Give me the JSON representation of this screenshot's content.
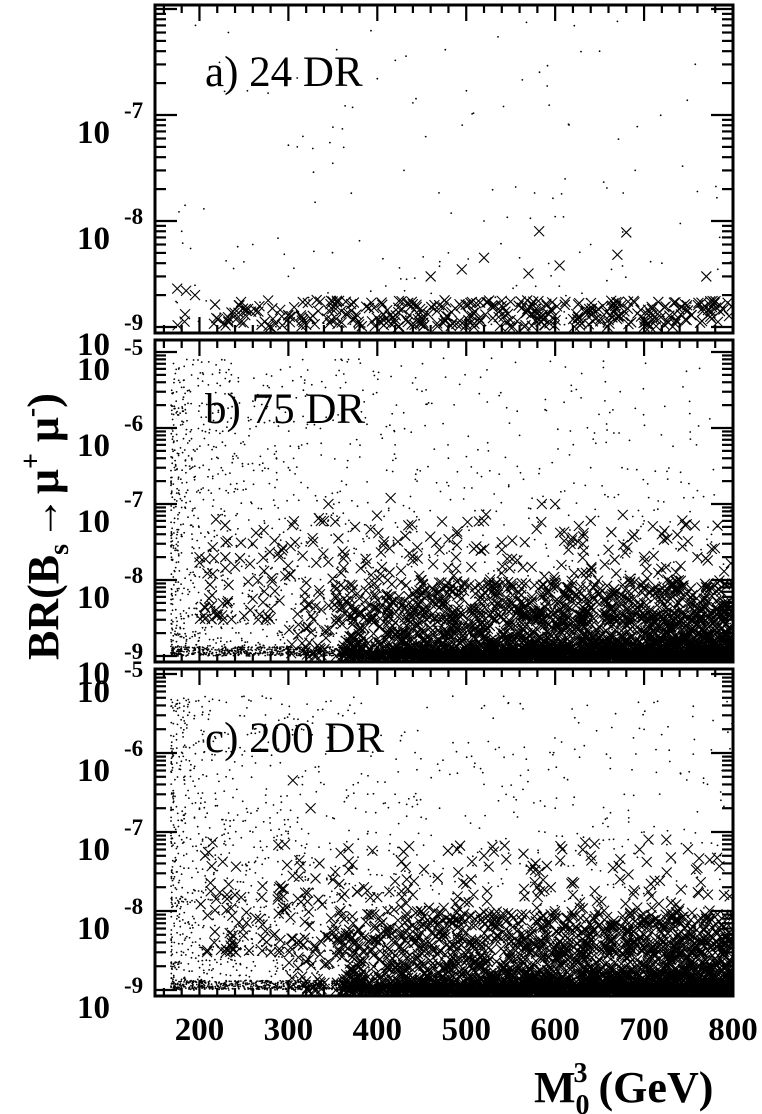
{
  "chart_data": [
    {
      "type": "scatter",
      "title": "a) 24 DR",
      "x_range": [
        150,
        800
      ],
      "y_scale": "log",
      "y_range": [
        1e-09,
        1e-06
      ],
      "y_ticks": [
        {
          "base": "10",
          "exp": "-9"
        },
        {
          "base": "10",
          "exp": "-8"
        },
        {
          "base": "10",
          "exp": "-7"
        }
      ],
      "series": [
        {
          "marker": "dot",
          "density": "sparse",
          "y_min": 1e-09,
          "y_max": 1e-06,
          "points": [
            [
              175,
              1.7e-09
            ],
            [
              180,
              8e-09
            ],
            [
              190,
              5.5e-09
            ],
            [
              205,
              1.3e-08
            ],
            [
              230,
              4.2e-09
            ],
            [
              260,
              6e-09
            ],
            [
              300,
              3e-09
            ],
            [
              330,
              1.5e-08
            ],
            [
              350,
              3.5e-08
            ],
            [
              380,
              6.5e-09
            ],
            [
              400,
              2.2e-07
            ],
            [
              430,
              3e-08
            ],
            [
              480,
              5e-09
            ],
            [
              520,
              1e-08
            ],
            [
              560,
              4.5e-09
            ],
            [
              600,
              1.1e-08
            ],
            [
              640,
              6e-09
            ],
            [
              690,
              3e-08
            ],
            [
              720,
              4e-09
            ],
            [
              760,
              1.9e-08
            ],
            [
              785,
              7e-09
            ],
            [
              440,
              1.3e-07
            ],
            [
              310,
              5e-08
            ],
            [
              650,
              4e-07
            ]
          ]
        },
        {
          "marker": "cross",
          "band": [
            1e-09,
            1.8e-09
          ],
          "points": [
            [
              175,
              2.3e-09
            ],
            [
              185,
              2.2e-09
            ],
            [
              195,
              2e-09
            ],
            [
              460,
              3e-09
            ],
            [
              495,
              3.5e-09
            ],
            [
              520,
              4.5e-09
            ],
            [
              570,
              3.2e-09
            ],
            [
              582,
              8e-09
            ],
            [
              605,
              3.8e-09
            ],
            [
              670,
              4.8e-09
            ],
            [
              680,
              7.8e-09
            ],
            [
              770,
              3e-09
            ]
          ]
        }
      ]
    },
    {
      "type": "scatter",
      "title": "b) 75 DR",
      "x_range": [
        150,
        800
      ],
      "y_scale": "log",
      "y_range": [
        1e-09,
        1e-05
      ],
      "y_ticks": [
        {
          "base": "10",
          "exp": "-9"
        },
        {
          "base": "10",
          "exp": "-8"
        },
        {
          "base": "10",
          "exp": "-7"
        },
        {
          "base": "10",
          "exp": "-6"
        },
        {
          "base": "10",
          "exp": "-5"
        }
      ],
      "series": [
        {
          "marker": "dot",
          "density": "dense at low M0 (200-400 GeV), sparse at high M0",
          "y_min": 1e-09,
          "y_max": 1e-05,
          "points": [
            [
              180,
              9e-08
            ],
            [
              200,
              3e-07
            ],
            [
              210,
              6e-07
            ],
            [
              230,
              1.5e-07
            ],
            [
              250,
              2e-07
            ],
            [
              270,
              4e-08
            ],
            [
              300,
              3e-07
            ],
            [
              320,
              1e-06
            ],
            [
              360,
              2e-07
            ],
            [
              420,
              6e-07
            ],
            [
              480,
              4e-07
            ],
            [
              560,
              8e-07
            ],
            [
              640,
              3e-07
            ],
            [
              700,
              6e-08
            ],
            [
              760,
              1.5e-07
            ]
          ]
        },
        {
          "marker": "cross",
          "band": [
            1e-09,
            3e-09
          ],
          "points": [
            [
              200,
              2e-08
            ],
            [
              215,
              1.2e-08
            ],
            [
              240,
              1.5e-08
            ],
            [
              260,
              3e-08
            ],
            [
              290,
              2e-08
            ],
            [
              340,
              6e-08
            ],
            [
              345,
              1e-07
            ],
            [
              375,
              5e-08
            ],
            [
              415,
              1.2e-07
            ],
            [
              440,
              1.8e-08
            ],
            [
              470,
              2.5e-08
            ],
            [
              490,
              4e-08
            ],
            [
              520,
              6e-08
            ],
            [
              540,
              2.5e-08
            ],
            [
              585,
              1e-07
            ],
            [
              600,
              1e-07
            ],
            [
              615,
              2.5e-08
            ],
            [
              640,
              6e-08
            ],
            [
              660,
              2.5e-08
            ],
            [
              700,
              2e-08
            ],
            [
              720,
              4e-08
            ],
            [
              760,
              2e-08
            ],
            [
              790,
              1.3e-08
            ]
          ]
        }
      ]
    },
    {
      "type": "scatter",
      "title": "c) 200 DR",
      "x_range": [
        150,
        800
      ],
      "y_scale": "log",
      "y_range": [
        1e-09,
        1e-05
      ],
      "y_ticks": [
        {
          "base": "10",
          "exp": "-9"
        },
        {
          "base": "10",
          "exp": "-8"
        },
        {
          "base": "10",
          "exp": "-7"
        },
        {
          "base": "10",
          "exp": "-6"
        },
        {
          "base": "10",
          "exp": "-5"
        }
      ],
      "series": [
        {
          "marker": "dot",
          "density": "dense at low M0 (200-400 GeV), sparse at high M0",
          "y_min": 1e-09,
          "y_max": 1e-05,
          "points": [
            [
              180,
              8e-08
            ],
            [
              200,
              2e-07
            ],
            [
              230,
              5e-07
            ],
            [
              260,
              1e-07
            ],
            [
              300,
              1.2e-06
            ],
            [
              340,
              4e-07
            ],
            [
              380,
              2e-06
            ],
            [
              420,
              3e-07
            ],
            [
              470,
              2e-07
            ],
            [
              520,
              4e-07
            ],
            [
              600,
              2e-07
            ],
            [
              700,
              1e-07
            ],
            [
              760,
              1.8e-07
            ]
          ]
        },
        {
          "marker": "cross",
          "band": [
            1e-09,
            3.5e-09
          ],
          "points": [
            [
              240,
              1.6e-08
            ],
            [
              270,
              1.5e-08
            ],
            [
              290,
              2e-08
            ],
            [
              305,
              4.5e-07
            ],
            [
              325,
              2e-07
            ],
            [
              335,
              4e-08
            ],
            [
              350,
              2.5e-08
            ],
            [
              360,
              1.5e-08
            ],
            [
              385,
              2e-08
            ],
            [
              400,
              1.5e-08
            ],
            [
              440,
              1.6e-08
            ],
            [
              490,
              6e-08
            ],
            [
              520,
              5e-08
            ],
            [
              545,
              4.5e-08
            ],
            [
              580,
              2e-08
            ],
            [
              620,
              1.6e-08
            ],
            [
              640,
              5e-08
            ],
            [
              665,
              3.5e-08
            ],
            [
              695,
              6e-08
            ],
            [
              705,
              8e-08
            ],
            [
              725,
              8e-08
            ],
            [
              760,
              3.5e-08
            ],
            [
              790,
              1.6e-08
            ]
          ]
        }
      ]
    }
  ],
  "x_axis": {
    "ticks": [
      "200",
      "300",
      "400",
      "500",
      "600",
      "700",
      "800"
    ],
    "label_main": "M",
    "label_sub": "0",
    "label_sup": "3",
    "label_unit": " (GeV)"
  },
  "y_axis": {
    "label_pre": "BR(B",
    "label_sub": "s",
    "label_arrow": "→",
    "label_mu1": "μ",
    "label_sup1": "+",
    "label_mu2": " μ",
    "label_sup2": "-",
    "label_post": ")"
  },
  "colors": {
    "marker": "#000000",
    "frame": "#000000",
    "background": "#ffffff"
  }
}
